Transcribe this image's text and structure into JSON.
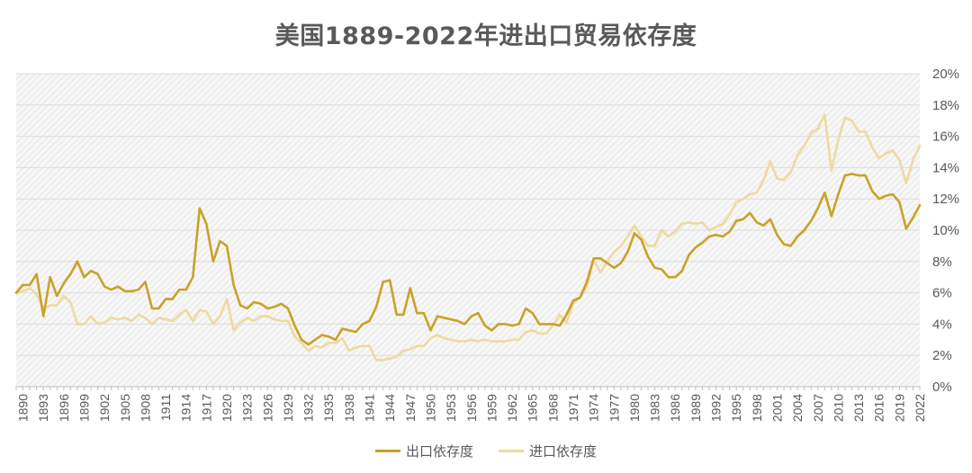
{
  "chart_data": {
    "type": "line",
    "title": "美国1889-2022年进出口贸易依存度",
    "xlabel": "",
    "ylabel": "",
    "x_range": [
      1889,
      2022
    ],
    "ylim": [
      0,
      20
    ],
    "y_ticks": [
      "0%",
      "2%",
      "4%",
      "6%",
      "8%",
      "10%",
      "12%",
      "14%",
      "16%",
      "18%",
      "20%"
    ],
    "x_ticks": [
      "1890",
      "1893",
      "1896",
      "1899",
      "1902",
      "1905",
      "1908",
      "1911",
      "1914",
      "1917",
      "1920",
      "1923",
      "1926",
      "1929",
      "1932",
      "1935",
      "1938",
      "1941",
      "1944",
      "1947",
      "1950",
      "1953",
      "1956",
      "1959",
      "1962",
      "1965",
      "1968",
      "1971",
      "1974",
      "1977",
      "1980",
      "1983",
      "1986",
      "1989",
      "1992",
      "1995",
      "1998",
      "2001",
      "2004",
      "2007",
      "2010",
      "2013",
      "2016",
      "2019",
      "2022"
    ],
    "grid": "dense-hatched-background",
    "legend_position": "bottom",
    "colors": {
      "exports": "#c9a227",
      "imports": "#efd9a0",
      "grid": "#dcdcdc",
      "axis_text": "#595959"
    },
    "series": [
      {
        "name": "出口依存度",
        "x_start": 1889,
        "values": [
          6.0,
          6.5,
          6.5,
          7.2,
          4.5,
          7.0,
          5.8,
          6.6,
          7.2,
          8.0,
          7.0,
          7.4,
          7.2,
          6.4,
          6.2,
          6.4,
          6.1,
          6.1,
          6.2,
          6.7,
          5.0,
          5.0,
          5.6,
          5.6,
          6.2,
          6.2,
          7.0,
          11.4,
          10.4,
          8.0,
          9.3,
          9.0,
          6.5,
          5.2,
          5.0,
          5.4,
          5.3,
          5.0,
          5.1,
          5.3,
          5.0,
          3.9,
          3.0,
          2.7,
          3.0,
          3.3,
          3.2,
          3.0,
          3.7,
          3.6,
          3.5,
          4.0,
          4.2,
          5.1,
          6.7,
          6.8,
          4.6,
          4.6,
          6.3,
          4.7,
          4.7,
          3.6,
          4.5,
          4.4,
          4.3,
          4.2,
          4.0,
          4.5,
          4.7,
          3.9,
          3.6,
          4.0,
          4.0,
          3.9,
          4.0,
          5.0,
          4.7,
          4.0,
          4.0,
          4.0,
          3.9,
          4.6,
          5.5,
          5.7,
          6.7,
          8.2,
          8.2,
          7.9,
          7.6,
          7.9,
          8.6,
          9.8,
          9.4,
          8.3,
          7.6,
          7.5,
          7.0,
          7.0,
          7.4,
          8.4,
          8.9,
          9.2,
          9.6,
          9.7,
          9.6,
          9.9,
          10.6,
          10.7,
          11.1,
          10.5,
          10.3,
          10.7,
          9.7,
          9.1,
          9.0,
          9.6,
          10.0,
          10.6,
          11.4,
          12.4,
          10.9,
          12.3,
          13.5,
          13.6,
          13.5,
          13.5,
          12.5,
          12.0,
          12.2,
          12.3,
          11.8,
          10.1,
          10.8,
          11.6
        ]
      },
      {
        "name": "进口依存度",
        "x_start": 1889,
        "values": [
          6.0,
          6.1,
          6.3,
          5.9,
          5.0,
          5.2,
          5.2,
          5.8,
          5.4,
          4.0,
          4.0,
          4.5,
          4.0,
          4.1,
          4.4,
          4.3,
          4.4,
          4.2,
          4.6,
          4.4,
          4.0,
          4.4,
          4.3,
          4.2,
          4.6,
          4.9,
          4.2,
          4.9,
          4.8,
          4.0,
          4.5,
          5.6,
          3.6,
          4.1,
          4.4,
          4.2,
          4.5,
          4.5,
          4.3,
          4.2,
          4.2,
          3.2,
          2.8,
          2.3,
          2.6,
          2.5,
          2.8,
          2.8,
          3.1,
          2.3,
          2.5,
          2.6,
          2.6,
          1.7,
          1.7,
          1.8,
          1.9,
          2.3,
          2.4,
          2.6,
          2.6,
          3.1,
          3.3,
          3.1,
          3.0,
          2.9,
          2.9,
          3.0,
          2.9,
          3.0,
          2.9,
          2.9,
          2.9,
          3.0,
          3.0,
          3.5,
          3.6,
          3.4,
          3.4,
          3.9,
          4.6,
          4.1,
          5.3,
          5.7,
          6.4,
          8.1,
          7.3,
          8.0,
          8.6,
          9.0,
          9.6,
          10.3,
          9.6,
          9.0,
          9.0,
          10.0,
          9.6,
          9.9,
          10.4,
          10.5,
          10.4,
          10.5,
          10.0,
          10.2,
          10.4,
          11.0,
          11.8,
          12.0,
          12.3,
          12.4,
          13.2,
          14.4,
          13.3,
          13.2,
          13.7,
          14.8,
          15.4,
          16.2,
          16.5,
          17.4,
          13.8,
          15.8,
          17.2,
          17.0,
          16.3,
          16.3,
          15.3,
          14.6,
          14.9,
          15.1,
          14.5,
          13.0,
          14.5,
          15.4
        ]
      }
    ]
  }
}
